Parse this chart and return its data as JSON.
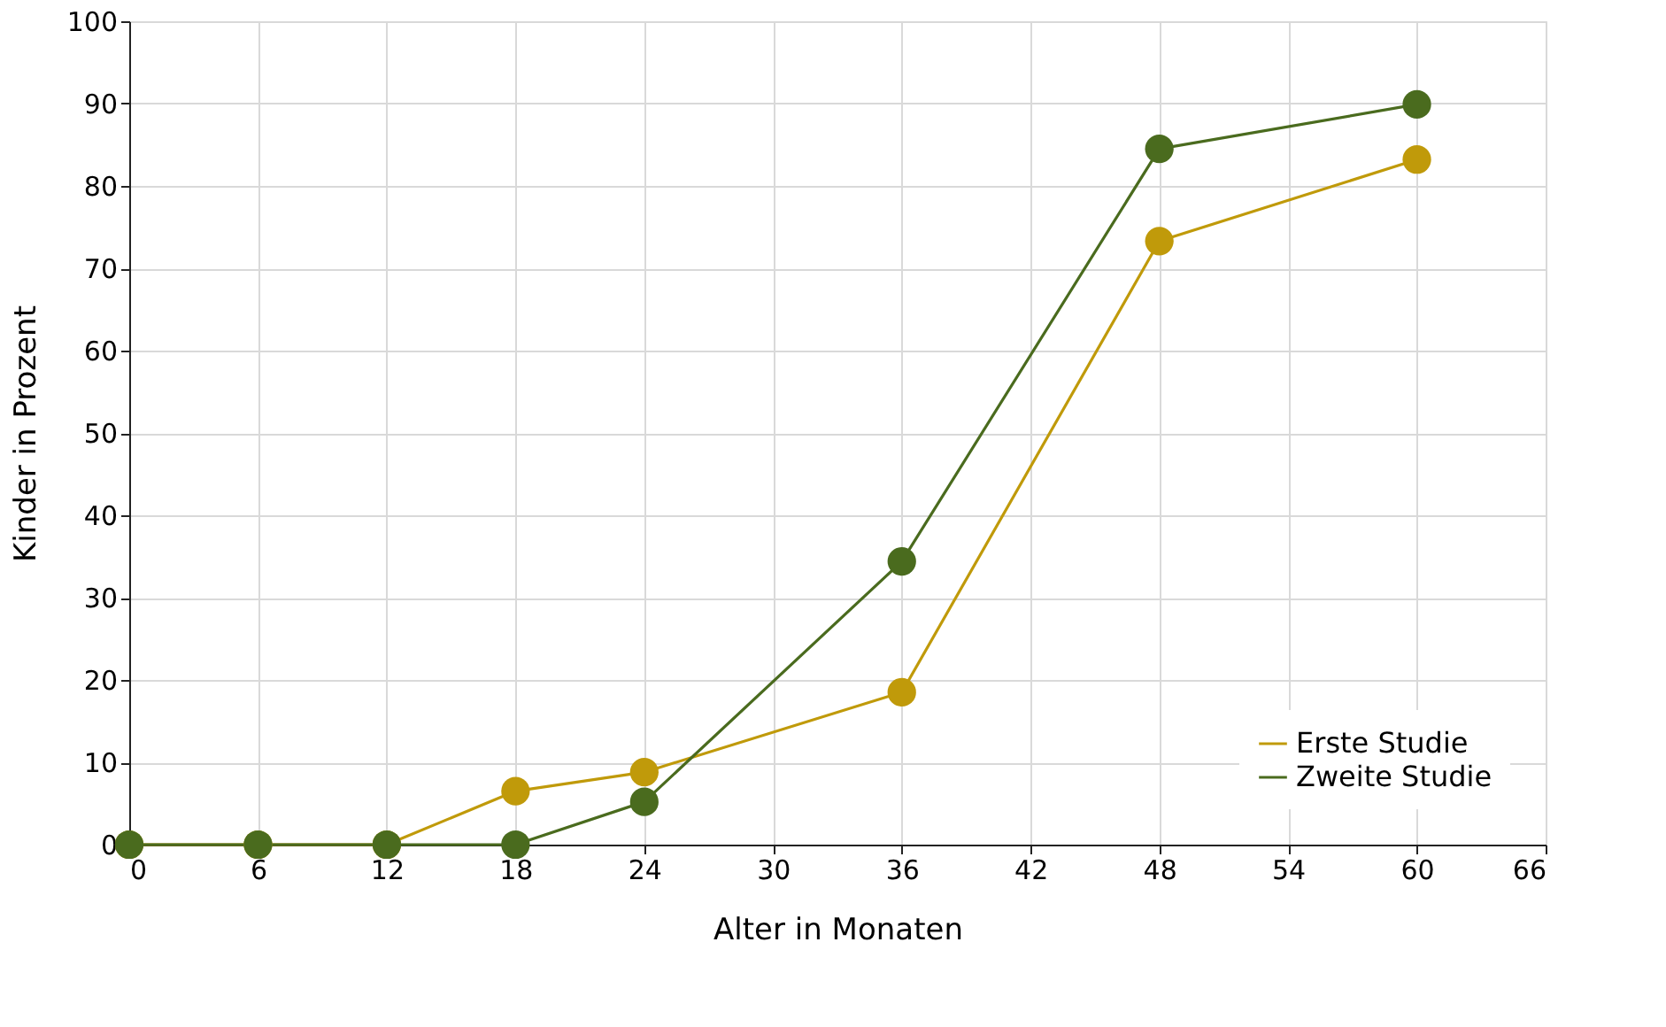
{
  "chart_data": {
    "type": "line",
    "xlabel": "Alter in Monaten",
    "ylabel": "Kinder in Prozent",
    "xlim": [
      0,
      66
    ],
    "xticks": [
      0,
      6,
      12,
      18,
      24,
      30,
      36,
      42,
      48,
      54,
      60,
      66
    ],
    "ylim": [
      0,
      100
    ],
    "yticks": [
      0,
      10,
      20,
      30,
      40,
      50,
      60,
      70,
      80,
      90,
      100
    ],
    "grid": true,
    "legend": "bottom right",
    "marker": "circle",
    "line_style": "solid",
    "series": [
      {
        "name": "Erste Studie",
        "color": "#c09a0a",
        "x": [
          0,
          6,
          12,
          18,
          24,
          36,
          48,
          60
        ],
        "values": [
          0,
          0,
          0,
          6.5,
          8.8,
          18.5,
          73.3,
          83.2
        ]
      },
      {
        "name": "Zweite Studie",
        "color": "#4a6b1e",
        "x": [
          0,
          6,
          12,
          18,
          24,
          36,
          48,
          60
        ],
        "values": [
          0,
          0,
          0,
          0,
          5.2,
          34.4,
          84.5,
          89.9
        ]
      }
    ]
  }
}
